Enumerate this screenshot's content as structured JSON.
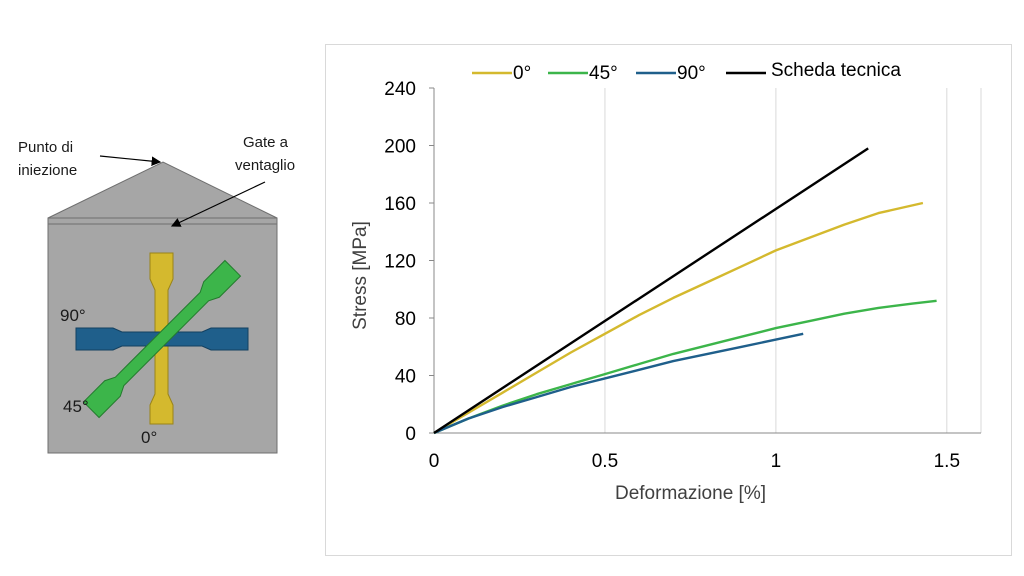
{
  "diagram": {
    "injection_point_label_line1": "Punto di",
    "injection_point_label_line2": "iniezione",
    "gate_label_line1": "Gate a",
    "gate_label_line2": "ventaglio",
    "label_90": "90°",
    "label_45": "45°",
    "label_0": "0°",
    "colors": {
      "plate": "#a6a6a6",
      "specimen_0": "#d4b92e",
      "specimen_45": "#3cb54a",
      "specimen_90": "#1f5f8b"
    }
  },
  "chart_data": {
    "type": "line",
    "xlabel": "Deformazione [%]",
    "ylabel": "Stress [MPa]",
    "xlim": [
      0,
      1.6
    ],
    "ylim": [
      0,
      240
    ],
    "xticks": [
      "0",
      "0.5",
      "1",
      "1.5"
    ],
    "yticks": [
      "0",
      "40",
      "80",
      "120",
      "160",
      "200",
      "240"
    ],
    "grid": "vertical",
    "legend_position": "top",
    "series": [
      {
        "name": "0°",
        "color": "#d4b92e",
        "x": [
          0,
          0.1,
          0.2,
          0.3,
          0.4,
          0.5,
          0.6,
          0.7,
          0.8,
          0.9,
          1.0,
          1.1,
          1.2,
          1.3,
          1.43
        ],
        "y": [
          0,
          14,
          28,
          42,
          56,
          69,
          82,
          94,
          105,
          116,
          127,
          136,
          145,
          153,
          160
        ]
      },
      {
        "name": "45°",
        "color": "#3cb54a",
        "x": [
          0,
          0.1,
          0.2,
          0.3,
          0.4,
          0.5,
          0.6,
          0.7,
          0.8,
          0.9,
          1.0,
          1.1,
          1.2,
          1.3,
          1.4,
          1.47
        ],
        "y": [
          0,
          10,
          19,
          27,
          34,
          41,
          48,
          55,
          61,
          67,
          73,
          78,
          83,
          87,
          90,
          92
        ]
      },
      {
        "name": "90°",
        "color": "#1f5f8b",
        "x": [
          0,
          0.1,
          0.2,
          0.3,
          0.4,
          0.5,
          0.6,
          0.7,
          0.8,
          0.9,
          1.0,
          1.08
        ],
        "y": [
          0,
          10,
          18,
          25,
          32,
          38,
          44,
          50,
          55,
          60,
          65,
          69
        ]
      },
      {
        "name": "Scheda tecnica",
        "color": "#000000",
        "x": [
          0,
          1.27
        ],
        "y": [
          0,
          198
        ]
      }
    ]
  }
}
